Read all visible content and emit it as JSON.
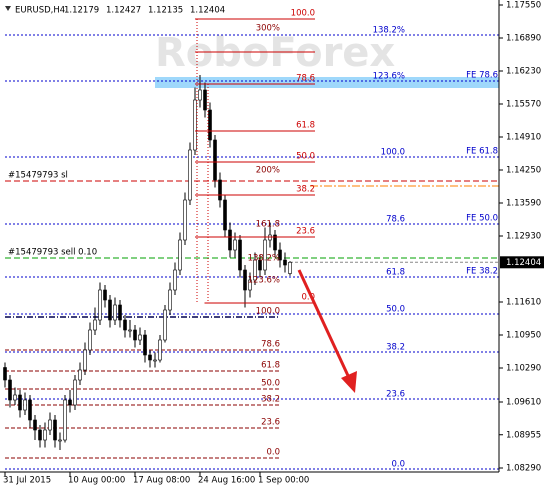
{
  "chart_data": {
    "type": "candlestick",
    "title": "EURUSD,H4",
    "quote": [
      1.12179,
      1.12427,
      1.12135,
      1.12404
    ],
    "watermark": "RoboForex",
    "categories": [
      "31 Jul 2015",
      null,
      null,
      null,
      null,
      null,
      null,
      null,
      null,
      null,
      null,
      null,
      null,
      "10 Aug 00:00",
      null,
      null,
      null,
      null,
      null,
      null,
      null,
      null,
      null,
      null,
      null,
      null,
      "17 Aug 08:00",
      null,
      null,
      null,
      null,
      null,
      null,
      null,
      null,
      null,
      null,
      null,
      null,
      "24 Aug 16:00",
      null,
      null,
      null,
      null,
      null,
      null,
      null,
      null,
      null,
      null,
      null,
      "1 Sep 00:00",
      null,
      null,
      null,
      null,
      null,
      null
    ],
    "open": [
      1.103,
      1.1005,
      1.0965,
      1.0975,
      1.0945,
      1.0965,
      1.0925,
      1.0905,
      1.0885,
      1.0905,
      1.0925,
      1.0885,
      1.0885,
      1.0965,
      1.0955,
      1.1005,
      1.1025,
      1.1065,
      1.1105,
      1.1125,
      1.1185,
      1.1165,
      1.1125,
      1.1155,
      1.1125,
      1.1105,
      1.1105,
      1.1085,
      1.1095,
      1.1055,
      1.1045,
      1.1045,
      1.1085,
      1.1145,
      1.1185,
      1.1225,
      1.1285,
      1.1365,
      1.1465,
      1.1565,
      1.1585,
      1.1545,
      1.1485,
      1.1405,
      1.1365,
      1.1305,
      1.1265,
      1.1285,
      1.1225,
      1.1185,
      1.1205,
      1.1245,
      1.1225,
      1.1285,
      1.1295,
      1.1265,
      1.1245,
      1.12179
    ],
    "high": [
      1.104,
      1.1015,
      1.099,
      1.0985,
      1.098,
      1.0975,
      1.0935,
      1.0915,
      1.092,
      1.094,
      1.0935,
      1.09,
      1.0975,
      1.0985,
      1.1015,
      1.104,
      1.108,
      1.112,
      1.115,
      1.12,
      1.1195,
      1.1175,
      1.117,
      1.1165,
      1.1135,
      1.1125,
      1.1115,
      1.111,
      1.1105,
      1.1065,
      1.106,
      1.1095,
      1.1155,
      1.12,
      1.124,
      1.13,
      1.138,
      1.148,
      1.159,
      1.1615,
      1.16,
      1.156,
      1.1495,
      1.142,
      1.1375,
      1.132,
      1.13,
      1.1295,
      1.1235,
      1.122,
      1.126,
      1.1255,
      1.131,
      1.132,
      1.1305,
      1.128,
      1.126,
      1.12427
    ],
    "low": [
      1.099,
      1.095,
      1.0955,
      1.093,
      1.0935,
      1.091,
      1.0885,
      1.087,
      1.087,
      1.0895,
      1.087,
      1.0865,
      1.088,
      1.094,
      1.0945,
      1.0995,
      1.1015,
      1.1055,
      1.1095,
      1.1115,
      1.115,
      1.111,
      1.1115,
      1.111,
      1.109,
      1.109,
      1.107,
      1.1075,
      1.104,
      1.103,
      1.103,
      1.104,
      1.108,
      1.1135,
      1.1175,
      1.1215,
      1.1275,
      1.1355,
      1.1455,
      1.155,
      1.153,
      1.147,
      1.139,
      1.135,
      1.129,
      1.125,
      1.125,
      1.121,
      1.115,
      1.117,
      1.1195,
      1.121,
      1.1215,
      1.127,
      1.125,
      1.123,
      1.122,
      1.12135
    ],
    "close": [
      1.1005,
      1.0965,
      1.0975,
      1.0945,
      1.0965,
      1.0925,
      1.0905,
      1.0885,
      1.0905,
      1.0925,
      1.0885,
      1.0885,
      1.0965,
      1.0955,
      1.1005,
      1.1025,
      1.1065,
      1.1105,
      1.1125,
      1.1185,
      1.1165,
      1.1125,
      1.1155,
      1.1125,
      1.1105,
      1.1105,
      1.1085,
      1.1095,
      1.1055,
      1.1045,
      1.1045,
      1.1085,
      1.1145,
      1.1185,
      1.1225,
      1.1285,
      1.1365,
      1.1465,
      1.1565,
      1.1585,
      1.1545,
      1.1485,
      1.1405,
      1.1365,
      1.1305,
      1.1265,
      1.1285,
      1.1225,
      1.1185,
      1.1205,
      1.1245,
      1.1225,
      1.1285,
      1.1295,
      1.1265,
      1.1245,
      1.1235,
      1.12404
    ],
    "ylim": [
      1.0821,
      1.1765
    ],
    "yticks": [
      {
        "value": 1.1755,
        "label": "1.17550"
      },
      {
        "value": 1.1689,
        "label": "1.16890"
      },
      {
        "value": 1.1623,
        "label": "1.16230"
      },
      {
        "value": 1.1557,
        "label": "1.15570"
      },
      {
        "value": 1.1491,
        "label": "1.14910"
      },
      {
        "value": 1.1425,
        "label": "1.14250"
      },
      {
        "value": 1.1359,
        "label": "1.13590"
      },
      {
        "value": 1.1293,
        "label": "1.12930"
      },
      {
        "value": 1.1161,
        "label": "1.11610"
      },
      {
        "value": 1.1095,
        "label": "1.10950"
      },
      {
        "value": 1.1029,
        "label": "1.10290"
      },
      {
        "value": 1.0961,
        "label": "1.09610"
      },
      {
        "value": 1.08955,
        "label": "1.08955"
      },
      {
        "value": 1.0829,
        "label": "1.08290"
      }
    ],
    "current_price": 1.12404,
    "zone": {
      "top": 1.1611,
      "bottom": 1.1589,
      "color": "#87cefa"
    },
    "resistance": {
      "price": 1.1393,
      "color": "#ff8000"
    },
    "orders": [
      {
        "label": "#15479793 sl",
        "price": 1.1403,
        "color": "#cc0000"
      },
      {
        "label": "#15479793 sell 0.10",
        "price": 1.1249,
        "color": "#00a000"
      }
    ],
    "fibo_upper": {
      "color": "#cc0000",
      "levels": [
        {
          "label": "100.0",
          "price": 1.1727
        },
        {
          "label": null,
          "price": 1.1661
        },
        {
          "label": "78.6",
          "price": 1.1597
        },
        {
          "label": "61.8",
          "price": 1.1503
        },
        {
          "label": "50.0",
          "price": 1.1441
        },
        {
          "label": "38.2",
          "price": 1.1375
        },
        {
          "label": "23.6",
          "price": 1.1291
        },
        {
          "label": "0.0",
          "price": 1.1159
        }
      ]
    },
    "extensions": {
      "color": "#8b0000",
      "levels": [
        {
          "label": "300%",
          "price": 1.1709
        },
        {
          "label": "200%",
          "price": 1.1425
        },
        {
          "label": "161.8",
          "price": 1.1317
        },
        {
          "label": "138.2%",
          "price": 1.1249
        },
        {
          "label": "123.6%",
          "price": 1.1205
        }
      ]
    },
    "fibo_blue": {
      "color": "#0000cc",
      "levels": [
        {
          "label": "138.2%",
          "fe": null,
          "price": 1.1695
        },
        {
          "label": "123.6%",
          "fe": "FE 78.6",
          "price": 1.1603
        },
        {
          "label": "100.0",
          "fe": "FE 61.8",
          "price": 1.1451
        },
        {
          "label": "78.6",
          "fe": "FE 50.0",
          "price": 1.1317
        },
        {
          "label": "61.8",
          "fe": "FE 38.2",
          "price": 1.1211
        },
        {
          "label": "50.0",
          "fe": null,
          "price": 1.1137
        },
        {
          "label": "38.2",
          "fe": null,
          "price": 1.1061
        },
        {
          "label": "23.6",
          "fe": null,
          "price": 1.0967
        },
        {
          "label": "0.0",
          "fe": null,
          "price": 1.0827
        }
      ]
    },
    "fibo_lower": {
      "color": "#8b0000",
      "levels": [
        {
          "label": "100.0",
          "price": 1.1131
        },
        {
          "label": "78.6",
          "price": 1.1065
        },
        {
          "label": "61.8",
          "price": 1.1023
        },
        {
          "label": "50.0",
          "price": 1.0987
        },
        {
          "label": "38.2",
          "price": 1.0955
        },
        {
          "label": "23.6",
          "price": 1.0909
        },
        {
          "label": "0.0",
          "price": 1.0849
        }
      ]
    }
  }
}
